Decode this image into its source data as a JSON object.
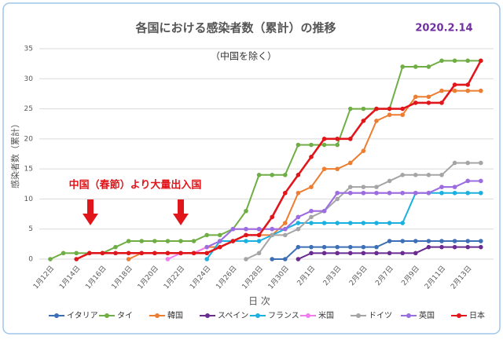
{
  "chart_data": {
    "type": "line",
    "title": "各国における感染者数（累計）の推移",
    "subtitle": "（中国を除く）",
    "date": "2020.2.14",
    "annotation": "中国（春節）より大量出入国",
    "x_label": "日 次",
    "y_label": "感染者数（累計）",
    "categories": [
      "1月12日",
      null,
      "1月14日",
      null,
      "1月16日",
      null,
      "1月18日",
      null,
      "1月20日",
      null,
      "1月22日",
      null,
      "1月24日",
      null,
      "1月26日",
      null,
      "1月28日",
      null,
      "1月30日",
      null,
      "2月1日",
      null,
      "2月3日",
      null,
      "2月5日",
      null,
      "2月7日",
      null,
      "2月9日",
      null,
      "2月11日",
      null,
      "2月13日",
      null
    ],
    "ylim": [
      0,
      35
    ],
    "yticks": [
      0,
      5,
      10,
      15,
      20,
      25,
      30,
      35
    ],
    "grid": true,
    "series": [
      {
        "name": "イタリア",
        "color": "#3d6fb6",
        "values": [
          null,
          null,
          null,
          null,
          null,
          null,
          null,
          null,
          null,
          null,
          null,
          null,
          null,
          null,
          null,
          null,
          null,
          0,
          0,
          2,
          2,
          2,
          2,
          2,
          2,
          2,
          3,
          3,
          3,
          3,
          3,
          3,
          3,
          3
        ]
      },
      {
        "name": "タイ",
        "color": "#6fae45",
        "values": [
          0,
          1,
          1,
          1,
          1,
          2,
          3,
          3,
          3,
          3,
          3,
          3,
          4,
          4,
          5,
          8,
          14,
          14,
          14,
          19,
          19,
          19,
          19,
          25,
          25,
          25,
          25,
          32,
          32,
          32,
          33,
          33,
          33,
          33
        ]
      },
      {
        "name": "韓国",
        "color": "#ed7d31",
        "values": [
          null,
          null,
          null,
          null,
          null,
          null,
          0,
          1,
          1,
          1,
          1,
          1,
          2,
          2,
          3,
          4,
          4,
          4,
          6,
          11,
          12,
          15,
          15,
          16,
          18,
          23,
          24,
          24,
          27,
          27,
          28,
          28,
          28,
          28
        ]
      },
      {
        "name": "スペイン",
        "color": "#6a2c91",
        "values": [
          null,
          null,
          null,
          null,
          null,
          null,
          null,
          null,
          null,
          null,
          null,
          null,
          null,
          null,
          null,
          null,
          null,
          null,
          null,
          0,
          1,
          1,
          1,
          1,
          1,
          1,
          1,
          1,
          1,
          2,
          2,
          2,
          2,
          2
        ]
      },
      {
        "name": "フランス",
        "color": "#1ab0e0",
        "values": [
          null,
          null,
          null,
          null,
          null,
          null,
          null,
          null,
          null,
          null,
          null,
          null,
          0,
          3,
          3,
          3,
          3,
          4,
          5,
          6,
          6,
          6,
          6,
          6,
          6,
          6,
          6,
          6,
          11,
          11,
          11,
          11,
          11,
          11
        ]
      },
      {
        "name": "米国",
        "color": "#f07cf0",
        "values": [
          null,
          null,
          null,
          null,
          null,
          null,
          null,
          null,
          null,
          0,
          1,
          1,
          2,
          3,
          5,
          5,
          5,
          5,
          5,
          7,
          8,
          8,
          11,
          11,
          11,
          11,
          11,
          11,
          11,
          11,
          12,
          12,
          13,
          13
        ]
      },
      {
        "name": "ドイツ",
        "color": "#a5a5a5",
        "values": [
          null,
          null,
          null,
          null,
          null,
          null,
          null,
          null,
          null,
          null,
          null,
          null,
          null,
          null,
          null,
          0,
          1,
          4,
          4,
          5,
          7,
          8,
          10,
          12,
          12,
          12,
          13,
          14,
          14,
          14,
          14,
          16,
          16,
          16
        ]
      },
      {
        "name": "英国",
        "color": "#9b6ee0",
        "values": [
          null,
          null,
          null,
          null,
          null,
          null,
          null,
          null,
          null,
          null,
          null,
          null,
          2,
          3,
          5,
          5,
          5,
          5,
          5,
          7,
          8,
          8,
          11,
          11,
          11,
          11,
          11,
          11,
          11,
          11,
          12,
          12,
          13,
          13
        ]
      },
      {
        "name": "日本",
        "color": "#e0161b",
        "values": [
          null,
          null,
          0,
          1,
          1,
          1,
          1,
          1,
          1,
          1,
          1,
          1,
          1,
          2,
          3,
          4,
          4,
          7,
          11,
          14,
          17,
          20,
          20,
          20,
          23,
          25,
          25,
          25,
          26,
          26,
          26,
          29,
          29,
          33
        ]
      }
    ]
  }
}
